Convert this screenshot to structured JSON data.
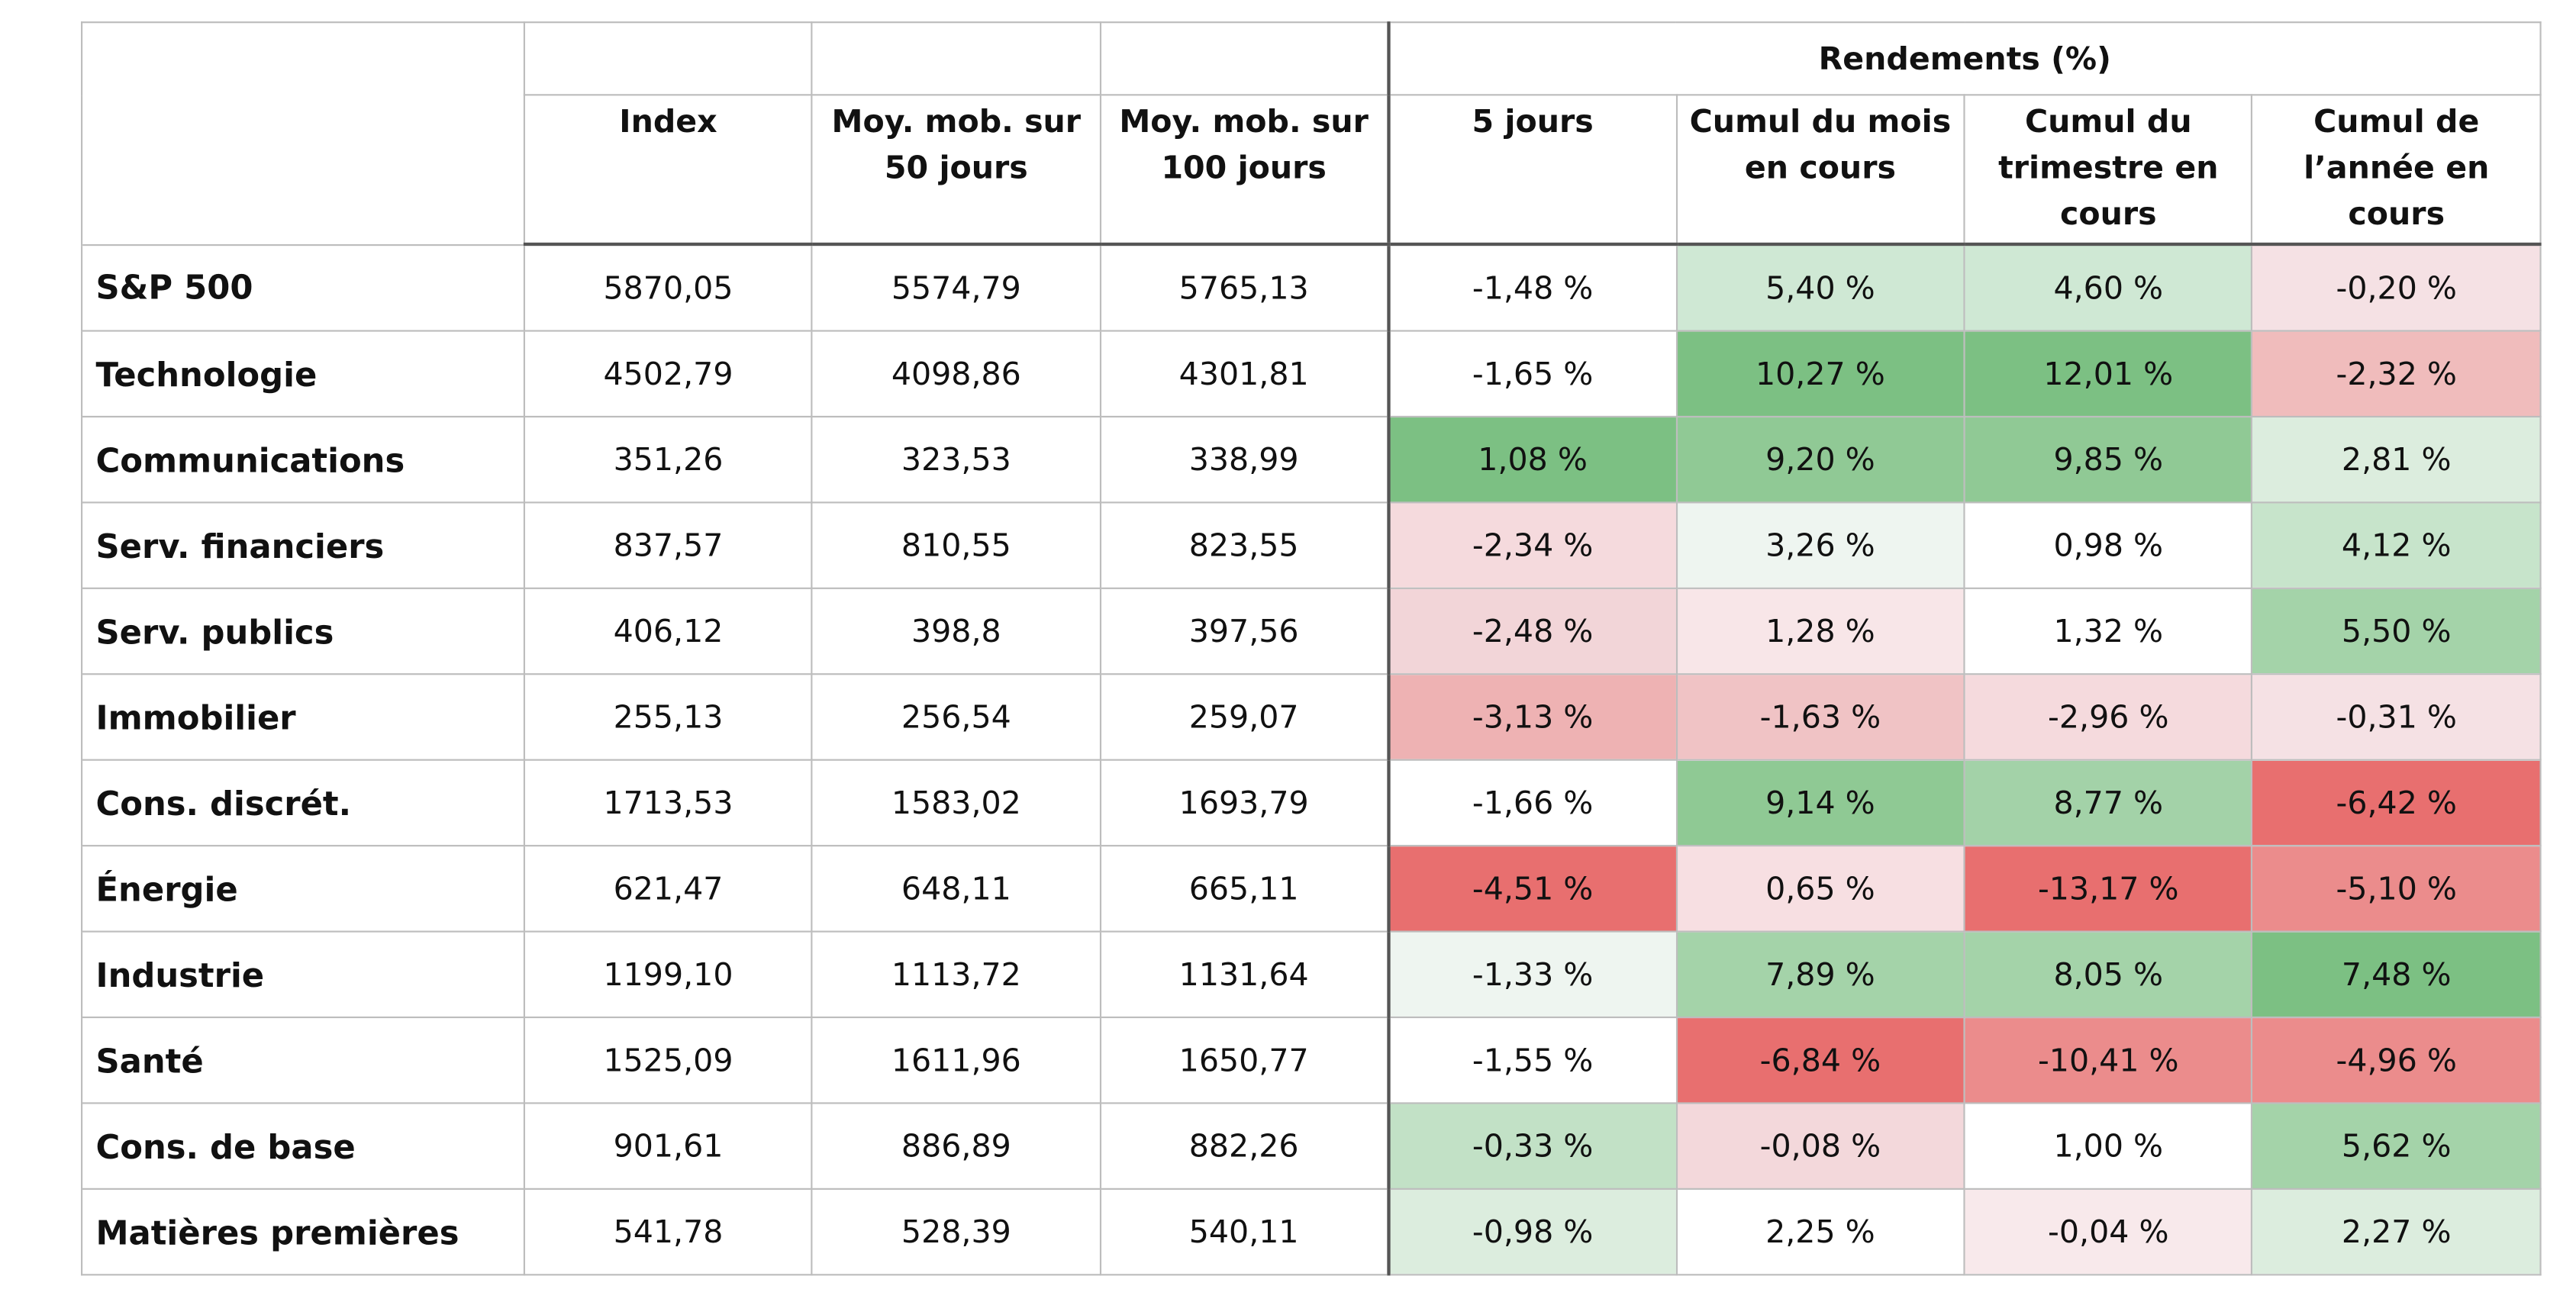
{
  "chart_data": {
    "type": "table",
    "group_header": "Rendements (%)",
    "columns": [
      "",
      "Index",
      "Moy. mob. sur 50 jours",
      "Moy. mob. sur 100 jours",
      "5 jours",
      "Cumul du mois en cours",
      "Cumul du trimestre en cours",
      "Cumul de l’année en cours"
    ],
    "rows": [
      {
        "name": "S&P 500",
        "values": [
          "5870,05",
          "5574,79",
          "5765,13",
          "-1,48 %",
          "5,40 %",
          "4,60 %",
          "-0,20 %"
        ],
        "colors": [
          "#ffffff",
          "#cfe8d4",
          "#cfe8d4",
          "#f5e1e4"
        ]
      },
      {
        "name": "Technologie",
        "values": [
          "4502,79",
          "4098,86",
          "4301,81",
          "-1,65 %",
          "10,27 %",
          "12,01 %",
          "-2,32 %"
        ],
        "colors": [
          "#ffffff",
          "#7cc083",
          "#7cc083",
          "#f0bcbc"
        ]
      },
      {
        "name": "Communications",
        "values": [
          "351,26",
          "323,53",
          "338,99",
          "1,08 %",
          "9,20 %",
          "9,85 %",
          "2,81 %"
        ],
        "colors": [
          "#7cc083",
          "#90c995",
          "#90c995",
          "#dcedde"
        ]
      },
      {
        "name": "Serv. financiers",
        "values": [
          "837,57",
          "810,55",
          "823,55",
          "-2,34 %",
          "3,26 %",
          "0,98 %",
          "4,12 %"
        ],
        "colors": [
          "#f5dadd",
          "#eef5f0",
          "#ffffff",
          "#c7e4cb"
        ]
      },
      {
        "name": "Serv. publics",
        "values": [
          "406,12",
          "398,8",
          "397,56",
          "-2,48 %",
          "1,28 %",
          "1,32 %",
          "5,50 %"
        ],
        "colors": [
          "#f2d5d8",
          "#f8e6e8",
          "#ffffff",
          "#a4d3a9"
        ]
      },
      {
        "name": "Immobilier",
        "values": [
          "255,13",
          "256,54",
          "259,07",
          "-3,13 %",
          "-1,63 %",
          "-2,96 %",
          "-0,31 %"
        ],
        "colors": [
          "#eeb2b3",
          "#f0c3c5",
          "#f5dadd",
          "#f5e1e4"
        ]
      },
      {
        "name": "Cons. discrét.",
        "values": [
          "1713,53",
          "1583,02",
          "1693,79",
          "-1,66 %",
          "9,14 %",
          "8,77 %",
          "-6,42 %"
        ],
        "colors": [
          "#ffffff",
          "#8fc994",
          "#a3d2a8",
          "#e86f6f"
        ]
      },
      {
        "name": "Énergie",
        "values": [
          "621,47",
          "648,11",
          "665,11",
          "-4,51 %",
          "0,65 %",
          "-13,17 %",
          "-5,10 %"
        ],
        "colors": [
          "#e86f6f",
          "#f7dfe2",
          "#e86f6f",
          "#eb8c8c"
        ]
      },
      {
        "name": "Industrie",
        "values": [
          "1199,10",
          "1113,72",
          "1131,64",
          "-1,33 %",
          "7,89 %",
          "8,05 %",
          "7,48 %"
        ],
        "colors": [
          "#eef5f0",
          "#a4d3a9",
          "#a4d3a9",
          "#7cc083"
        ]
      },
      {
        "name": "Santé",
        "values": [
          "1525,09",
          "1611,96",
          "1650,77",
          "-1,55 %",
          "-6,84 %",
          "-10,41 %",
          "-4,96 %"
        ],
        "colors": [
          "#ffffff",
          "#e86f6f",
          "#eb8c8c",
          "#eb8c8c"
        ]
      },
      {
        "name": "Cons. de base",
        "values": [
          "901,61",
          "886,89",
          "882,26",
          "-0,33 %",
          "-0,08 %",
          "1,00 %",
          "5,62 %"
        ],
        "colors": [
          "#c2e1c6",
          "#f3d8db",
          "#ffffff",
          "#a4d3a9"
        ]
      },
      {
        "name": "Matières premières",
        "values": [
          "541,78",
          "528,39",
          "540,11",
          "-0,98 %",
          "2,25 %",
          "-0,04 %",
          "2,27 %"
        ],
        "colors": [
          "#dcedde",
          "#ffffff",
          "#f8e9eb",
          "#dcedde"
        ]
      }
    ]
  }
}
